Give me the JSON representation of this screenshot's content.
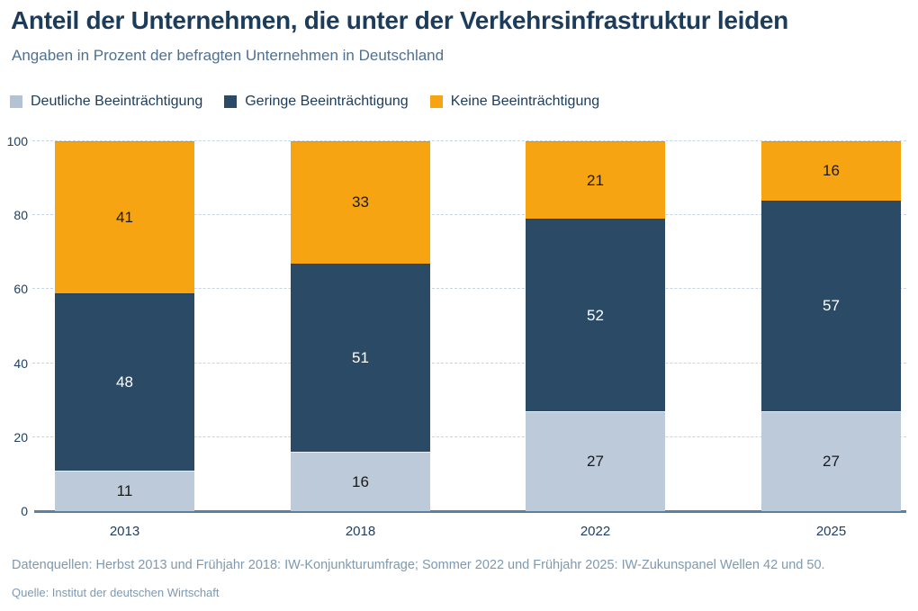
{
  "header": {
    "title": "Anteil der Unternehmen, die unter der Verkehrsinfrastruktur leiden",
    "subtitle": "Angaben in Prozent der befragten Unternehmen in Deutschland"
  },
  "legend": [
    {
      "label": "Deutliche Beeinträchtigung",
      "color": "#b3c3d3"
    },
    {
      "label": "Geringe Beeinträchtigung",
      "color": "#2b4a66"
    },
    {
      "label": "Keine Beeinträchtigung",
      "color": "#f6a412"
    }
  ],
  "chart_data": {
    "type": "bar",
    "stacked": true,
    "title": "Anteil der Unternehmen, die unter der Verkehrsinfrastruktur leiden",
    "subtitle": "Angaben in Prozent der befragten Unternehmen in Deutschland",
    "categories": [
      "2013",
      "2018",
      "2022",
      "2025"
    ],
    "series": [
      {
        "name": "Deutliche Beeinträchtigung",
        "color": "#bccada",
        "edge": "#e8eef4",
        "label_color": "#1a1a1a",
        "values": [
          11,
          16,
          27,
          27
        ]
      },
      {
        "name": "Geringe Beeinträchtigung",
        "color": "#2b4a66",
        "edge": "#223f59",
        "label_color": "#ffffff",
        "values": [
          48,
          51,
          52,
          57
        ]
      },
      {
        "name": "Keine Beeinträchtigung",
        "color": "#f6a412",
        "edge": "#e09108",
        "label_color": "#1a1a1a",
        "values": [
          41,
          33,
          21,
          16
        ]
      }
    ],
    "yticks": [
      0,
      20,
      40,
      60,
      80,
      100
    ],
    "ylim": [
      0,
      100
    ],
    "grid": "horizontal-dashed",
    "gridline_color": "#c7d4e1",
    "axis_line_color": "#5e80a0",
    "legend_position": "top",
    "value_labels": "inside-center"
  },
  "footer": {
    "datasources": "Datenquellen: Herbst 2013 und Frühjahr 2018: IW-Konjunkturumfrage; Sommer 2022 und Frühjahr 2025: IW-Zukunspanel Wellen 42 und 50.",
    "source": "Quelle: Institut der deutschen Wirtschaft"
  }
}
